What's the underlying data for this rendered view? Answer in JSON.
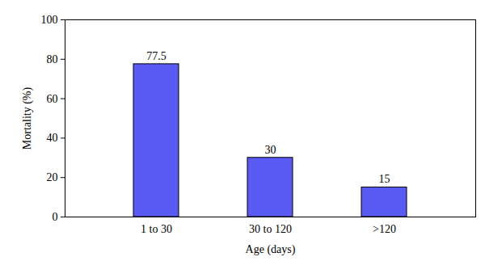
{
  "chart_data": {
    "type": "bar",
    "categories": [
      "1 to 30",
      "30 to 120",
      ">120"
    ],
    "values": [
      77.5,
      30,
      15
    ],
    "color": "#5a5af5",
    "xlabel": "Age (days)",
    "ylabel": "Mortality (%)",
    "ylim": [
      0,
      100
    ],
    "yticks": [
      0,
      20,
      40,
      60,
      80,
      100
    ],
    "data_labels": true,
    "grid": false
  }
}
